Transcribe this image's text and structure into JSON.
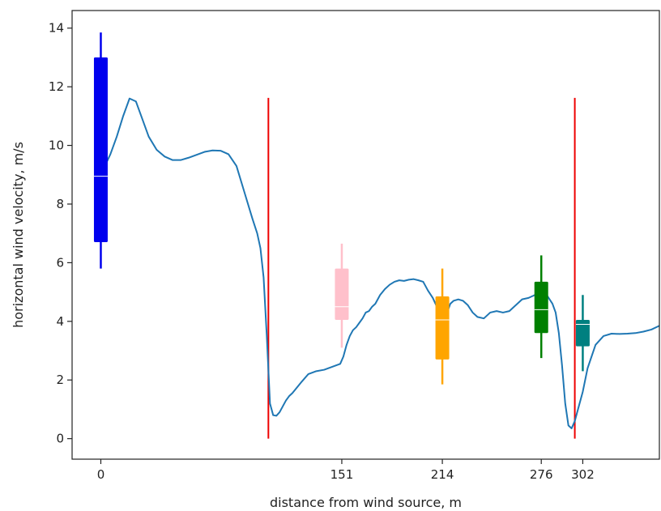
{
  "chart_data": {
    "type": "line",
    "title": "",
    "xlabel": "distance from wind source, m",
    "ylabel": "horizontal wind velocity, m/s",
    "xlim": [
      -18,
      350
    ],
    "ylim": [
      -0.7,
      14.6
    ],
    "x_ticks": [
      {
        "value": 0,
        "label": "0"
      },
      {
        "value": 151,
        "label": "151"
      },
      {
        "value": 214,
        "label": "214"
      },
      {
        "value": 276,
        "label": "276"
      },
      {
        "value": 302,
        "label": "302"
      }
    ],
    "y_ticks": [
      {
        "value": 0,
        "label": "0"
      },
      {
        "value": 2,
        "label": "2"
      },
      {
        "value": 4,
        "label": "4"
      },
      {
        "value": 6,
        "label": "6"
      },
      {
        "value": 8,
        "label": "8"
      },
      {
        "value": 10,
        "label": "10"
      },
      {
        "value": 12,
        "label": "12"
      },
      {
        "value": 14,
        "label": "14"
      }
    ],
    "grid": false,
    "line_series": {
      "color": "#1f77b4",
      "x": [
        0,
        3,
        6,
        10,
        14,
        18,
        22,
        26,
        30,
        35,
        40,
        45,
        50,
        55,
        60,
        65,
        70,
        75,
        80,
        85,
        90,
        95,
        98,
        100,
        102,
        104,
        106,
        108,
        110,
        112,
        114,
        116,
        118,
        120,
        123,
        126,
        130,
        135,
        140,
        145,
        150,
        152,
        154,
        156,
        158,
        160,
        162,
        164,
        166,
        168,
        170,
        172,
        175,
        178,
        181,
        184,
        187,
        190,
        193,
        196,
        199,
        202,
        205,
        208,
        211,
        213,
        215,
        217,
        219,
        221,
        224,
        227,
        230,
        233,
        236,
        240,
        244,
        248,
        252,
        256,
        260,
        264,
        268,
        272,
        276,
        280,
        283,
        285,
        287,
        289,
        291,
        293,
        295,
        297,
        299,
        302,
        305,
        310,
        315,
        320,
        325,
        330,
        335,
        340,
        345,
        350
      ],
      "y": [
        9.2,
        9.35,
        9.7,
        10.3,
        11.0,
        11.6,
        11.5,
        10.9,
        10.3,
        9.85,
        9.62,
        9.5,
        9.5,
        9.58,
        9.68,
        9.78,
        9.83,
        9.82,
        9.7,
        9.3,
        8.4,
        7.5,
        7.0,
        6.5,
        5.5,
        3.5,
        1.2,
        0.8,
        0.78,
        0.9,
        1.1,
        1.3,
        1.45,
        1.55,
        1.75,
        1.95,
        2.2,
        2.3,
        2.35,
        2.45,
        2.55,
        2.8,
        3.2,
        3.5,
        3.7,
        3.8,
        3.95,
        4.1,
        4.3,
        4.35,
        4.5,
        4.6,
        4.9,
        5.1,
        5.25,
        5.35,
        5.4,
        5.38,
        5.42,
        5.44,
        5.4,
        5.35,
        5.05,
        4.8,
        4.45,
        4.2,
        4.1,
        4.3,
        4.6,
        4.7,
        4.75,
        4.7,
        4.55,
        4.3,
        4.15,
        4.1,
        4.3,
        4.35,
        4.3,
        4.35,
        4.55,
        4.75,
        4.8,
        4.9,
        4.95,
        4.85,
        4.6,
        4.3,
        3.6,
        2.5,
        1.2,
        0.45,
        0.35,
        0.6,
        1.0,
        1.6,
        2.4,
        3.2,
        3.5,
        3.58,
        3.57,
        3.58,
        3.6,
        3.65,
        3.72,
        3.85
      ]
    },
    "vertical_lines": [
      {
        "x": 105,
        "ymin": 0,
        "ymax": 11.62,
        "color": "#ee0000"
      },
      {
        "x": 297,
        "ymin": 0,
        "ymax": 11.62,
        "color": "#ee0000"
      }
    ],
    "box_markers": [
      {
        "x": 0,
        "min": 5.8,
        "q1": 6.7,
        "median": 8.95,
        "q3": 13.0,
        "max": 13.85,
        "color": "#0000ee"
      },
      {
        "x": 151,
        "min": 3.1,
        "q1": 4.05,
        "median": 4.5,
        "q3": 5.8,
        "max": 6.65,
        "color": "#ffc0cb"
      },
      {
        "x": 214,
        "min": 1.85,
        "q1": 2.7,
        "median": 4.05,
        "q3": 4.85,
        "max": 5.8,
        "color": "#ffa500"
      },
      {
        "x": 276,
        "min": 2.75,
        "q1": 3.6,
        "median": 4.4,
        "q3": 5.35,
        "max": 6.25,
        "color": "#008000"
      },
      {
        "x": 302,
        "min": 2.3,
        "q1": 3.15,
        "median": 3.9,
        "q3": 4.05,
        "max": 4.9,
        "color": "#008080"
      }
    ]
  }
}
